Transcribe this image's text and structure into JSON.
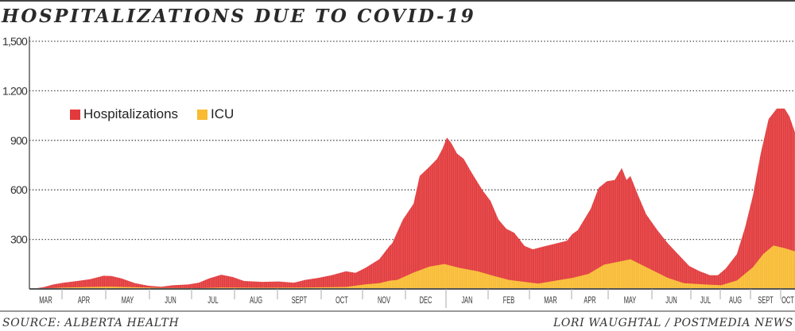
{
  "chart_data": {
    "type": "area",
    "title": "HOSPITALIZATIONS DUE TO COVID-19",
    "xlabel": "",
    "ylabel": "",
    "x_units": "months since March 1, 2020",
    "ylim": [
      0,
      1500
    ],
    "yticks": [
      300,
      600,
      900,
      1200,
      1500
    ],
    "ytick_labels": [
      "300",
      "600",
      "900",
      "1.200",
      "1,500"
    ],
    "grid": "horizontal dotted",
    "legend_position": "top-left",
    "months": [
      "MAR",
      "APR",
      "MAY",
      "JUN",
      "JUL",
      "AUG",
      "SEPT",
      "OCT",
      "NOV",
      "DEC",
      "JAN",
      "FEB",
      "MAR",
      "APR",
      "MAY",
      "JUN",
      "JUL",
      "AUG",
      "SEPT",
      "OCT"
    ],
    "series": [
      {
        "name": "Hospitalizations",
        "color": "#e23a3c",
        "x": [
          0.07,
          0.44,
          0.73,
          1.04,
          1.35,
          1.64,
          1.95,
          2.13,
          2.36,
          2.67,
          2.98,
          3.28,
          3.55,
          3.92,
          4.17,
          4.41,
          4.69,
          4.96,
          5.22,
          5.65,
          6.02,
          6.38,
          6.62,
          6.93,
          7.25,
          7.6,
          7.83,
          8.07,
          8.39,
          8.63,
          8.69,
          8.94,
          9.2,
          9.35,
          9.59,
          9.78,
          9.92,
          10.02,
          10.12,
          10.26,
          10.42,
          10.6,
          10.87,
          11.06,
          11.25,
          11.44,
          11.63,
          11.88,
          12.08,
          12.32,
          12.64,
          12.89,
          13.02,
          13.17,
          13.3,
          13.52,
          13.74,
          13.96,
          14.15,
          14.31,
          14.42,
          14.51,
          14.69,
          14.87,
          15.14,
          15.41,
          15.67,
          15.96,
          16.3,
          16.65,
          16.92,
          17.18,
          17.55,
          17.82,
          18.08,
          18.34,
          18.6,
          18.87,
          19.13,
          19.29,
          19.47
        ],
        "values": [
          0,
          11,
          27,
          38,
          48,
          59,
          80,
          78,
          64,
          35,
          19,
          13,
          22,
          27,
          38,
          64,
          86,
          72,
          48,
          43,
          45,
          38,
          54,
          67,
          83,
          107,
          97,
          128,
          180,
          260,
          276,
          420,
          516,
          684,
          740,
          788,
          852,
          917,
          885,
          820,
          788,
          708,
          596,
          532,
          420,
          364,
          340,
          260,
          240,
          256,
          276,
          292,
          332,
          356,
          404,
          484,
          612,
          652,
          660,
          732,
          660,
          684,
          564,
          452,
          356,
          276,
          211,
          139,
          107,
          83,
          83,
          123,
          211,
          372,
          564,
          820,
          1029,
          1093,
          1093,
          1045,
          949
        ]
      },
      {
        "name": "ICU",
        "color": "#f8bb33",
        "x": [
          0.07,
          0.44,
          1.04,
          1.64,
          2.13,
          2.67,
          3.28,
          4.17,
          4.69,
          5.65,
          6.62,
          7.6,
          8.07,
          8.39,
          8.63,
          8.81,
          9.2,
          9.59,
          9.96,
          10.31,
          10.75,
          11.12,
          11.5,
          11.88,
          12.21,
          12.64,
          13.02,
          13.46,
          13.89,
          14.51,
          15.0,
          15.41,
          15.82,
          16.49,
          17.03,
          17.55,
          18.08,
          18.42,
          18.76,
          19.13,
          19.47
        ],
        "values": [
          0,
          3,
          8,
          12,
          14,
          10,
          6,
          5,
          8,
          7,
          8,
          12,
          28,
          35,
          50,
          55,
          99,
          135,
          151,
          128,
          107,
          80,
          55,
          43,
          32,
          51,
          67,
          91,
          147,
          180,
          115,
          67,
          35,
          27,
          22,
          51,
          131,
          211,
          263,
          247,
          228
        ]
      }
    ]
  },
  "footer": {
    "source": "SOURCE: ALBERTA HEALTH",
    "credit": "LORI WAUGHTAL / POSTMEDIA NEWS"
  }
}
